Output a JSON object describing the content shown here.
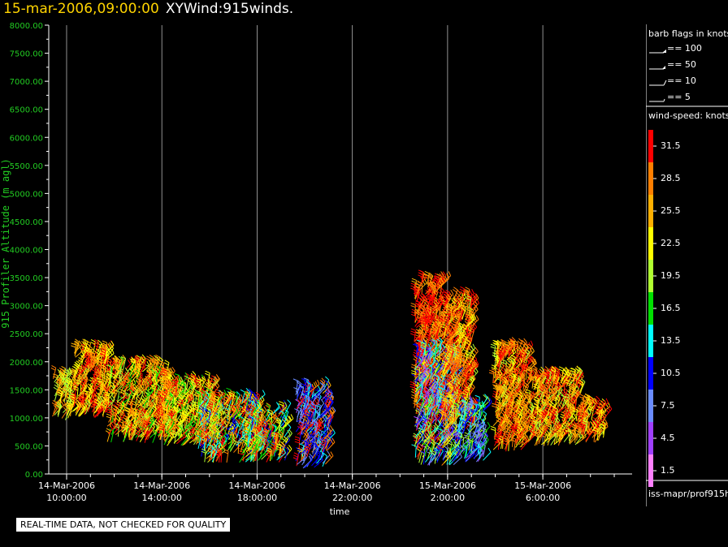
{
  "header": {
    "timestamp": "15-mar-2006,09:00:00",
    "product": "XYWind:915winds."
  },
  "legend": {
    "barb_title": "barb flags in knots",
    "barb_items": [
      "== 100",
      "== 50",
      "== 10",
      "== 5"
    ],
    "speed_title": "wind-speed: knots",
    "speed_bins": [
      {
        "label": "31.5",
        "color": "#ff0000"
      },
      {
        "label": "28.5",
        "color": "#ff7f00"
      },
      {
        "label": "25.5",
        "color": "#ffb000"
      },
      {
        "label": "22.5",
        "color": "#ffff00"
      },
      {
        "label": "19.5",
        "color": "#b0ff30"
      },
      {
        "label": "16.5",
        "color": "#00e000"
      },
      {
        "label": "13.5",
        "color": "#00ffff"
      },
      {
        "label": "10.5",
        "color": "#0000ff"
      },
      {
        "label": "7.5",
        "color": "#6a8cff"
      },
      {
        "label": "4.5",
        "color": "#a040ff"
      },
      {
        "label": "1.5",
        "color": "#ff80ff"
      }
    ],
    "source": "iss-mapr/prof915h"
  },
  "notice": "REAL-TIME DATA, NOT CHECKED FOR QUALITY",
  "chart_data": {
    "type": "scatter",
    "ylabel": "915 Profiler Altitude (m agl)",
    "xlabel": "time",
    "ylim": [
      0,
      8000
    ],
    "yticks": [
      "0.00",
      "500.00",
      "1000.00",
      "1500.00",
      "2000.00",
      "2500.00",
      "3000.00",
      "3500.00",
      "4000.00",
      "4500.00",
      "5000.00",
      "5500.00",
      "6000.00",
      "6500.00",
      "7000.00",
      "7500.00",
      "8000.00"
    ],
    "xlim_hours": [
      9.25,
      33.75
    ],
    "xticks": [
      {
        "hour": 10,
        "date": "14-Mar-2006",
        "time": "10:00:00"
      },
      {
        "hour": 14,
        "date": "14-Mar-2006",
        "time": "14:00:00"
      },
      {
        "hour": 18,
        "date": "14-Mar-2006",
        "time": "18:00:00"
      },
      {
        "hour": 22,
        "date": "14-Mar-2006",
        "time": "22:00:00"
      },
      {
        "hour": 26,
        "date": "15-Mar-2006",
        "time": "2:00:00"
      },
      {
        "hour": 30,
        "date": "15-Mar-2006",
        "time": "6:00:00"
      }
    ],
    "grid": "vertical",
    "clusters": [
      {
        "t0": 9.4,
        "t1": 10.3,
        "z0": 950,
        "z1": 1700,
        "speeds": [
          22,
          25,
          20,
          28
        ]
      },
      {
        "t0": 10.3,
        "t1": 11.7,
        "z0": 1000,
        "z1": 2200,
        "speeds": [
          26,
          29,
          31,
          24,
          22
        ]
      },
      {
        "t0": 11.7,
        "t1": 14.3,
        "z0": 550,
        "z1": 1900,
        "speeds": [
          23,
          26,
          20,
          28,
          17,
          24,
          31
        ]
      },
      {
        "t0": 14.0,
        "t1": 16.2,
        "z0": 500,
        "z1": 1600,
        "speeds": [
          20,
          24,
          28,
          17,
          31,
          22
        ]
      },
      {
        "t0": 15.5,
        "t1": 18.0,
        "z0": 200,
        "z1": 1300,
        "speeds": [
          14,
          18,
          28,
          31,
          11,
          20,
          24
        ]
      },
      {
        "t0": 17.5,
        "t1": 19.2,
        "z0": 200,
        "z1": 1100,
        "speeds": [
          31,
          29,
          18,
          15,
          12,
          22
        ]
      },
      {
        "t0": 19.6,
        "t1": 21.0,
        "z0": 100,
        "z1": 1500,
        "speeds": [
          31,
          28,
          9,
          12,
          7,
          11
        ]
      },
      {
        "t0": 24.6,
        "t1": 25.8,
        "z0": 1000,
        "z1": 3400,
        "speeds": [
          31,
          29,
          26,
          30
        ]
      },
      {
        "t0": 24.6,
        "t1": 26.4,
        "z0": 150,
        "z1": 2200,
        "speeds": [
          13,
          10,
          8,
          15,
          20,
          6,
          22,
          31
        ]
      },
      {
        "t0": 25.8,
        "t1": 27.0,
        "z0": 800,
        "z1": 3100,
        "speeds": [
          31,
          29,
          28,
          22
        ]
      },
      {
        "t0": 26.3,
        "t1": 27.5,
        "z0": 200,
        "z1": 1200,
        "speeds": [
          12,
          9,
          15,
          20,
          7
        ]
      },
      {
        "t0": 27.9,
        "t1": 29.4,
        "z0": 400,
        "z1": 2200,
        "speeds": [
          31,
          29,
          26,
          22,
          28
        ]
      },
      {
        "t0": 29.4,
        "t1": 31.6,
        "z0": 500,
        "z1": 1700,
        "speeds": [
          29,
          31,
          24,
          20,
          22,
          27
        ]
      },
      {
        "t0": 31.6,
        "t1": 32.6,
        "z0": 550,
        "z1": 1200,
        "speeds": [
          28,
          31,
          22,
          25
        ]
      }
    ]
  }
}
